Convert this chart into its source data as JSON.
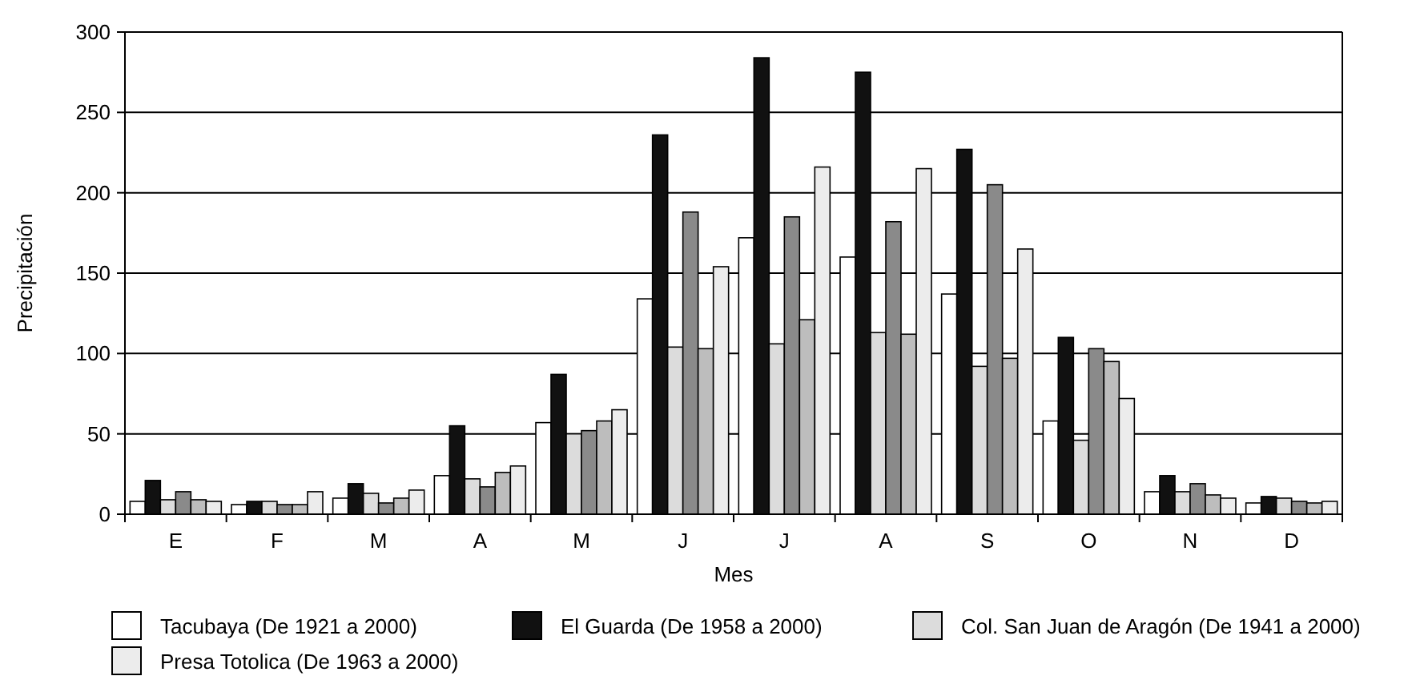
{
  "chart_data": {
    "type": "bar",
    "xlabel": "Mes",
    "ylabel": "Precipitación",
    "categories": [
      "E",
      "F",
      "M",
      "A",
      "M",
      "J",
      "J",
      "A",
      "S",
      "O",
      "N",
      "D"
    ],
    "series": [
      {
        "name": "Tacubaya (De 1921 a 2000)",
        "color": "#ffffff",
        "values": [
          8,
          6,
          10,
          24,
          57,
          134,
          172,
          160,
          137,
          58,
          14,
          7
        ]
      },
      {
        "name": "El Guarda (De 1958 a 2000)",
        "color": "#111111",
        "values": [
          21,
          8,
          19,
          55,
          87,
          236,
          284,
          275,
          227,
          110,
          24,
          11
        ]
      },
      {
        "name": "Col. San Juan de Aragón (De 1941 a 2000)",
        "color": "#dcdcdc",
        "values": [
          9,
          8,
          13,
          22,
          50,
          104,
          106,
          113,
          92,
          46,
          14,
          10
        ]
      },
      {
        "color": "#8a8a8a",
        "values": [
          14,
          6,
          7,
          17,
          52,
          188,
          185,
          182,
          205,
          103,
          19,
          8
        ]
      },
      {
        "color": "#bdbdbd",
        "values": [
          9,
          6,
          10,
          26,
          58,
          103,
          121,
          112,
          97,
          95,
          12,
          7
        ]
      },
      {
        "name": "Presa Totolica (De 1963 a 2000)",
        "color": "#ececec",
        "values": [
          8,
          14,
          15,
          30,
          65,
          154,
          216,
          215,
          165,
          72,
          10,
          8
        ]
      }
    ],
    "ylim": [
      0,
      300
    ],
    "yticks": [
      0,
      50,
      100,
      150,
      200,
      250,
      300
    ],
    "grid": "y",
    "legend": "bottom"
  }
}
